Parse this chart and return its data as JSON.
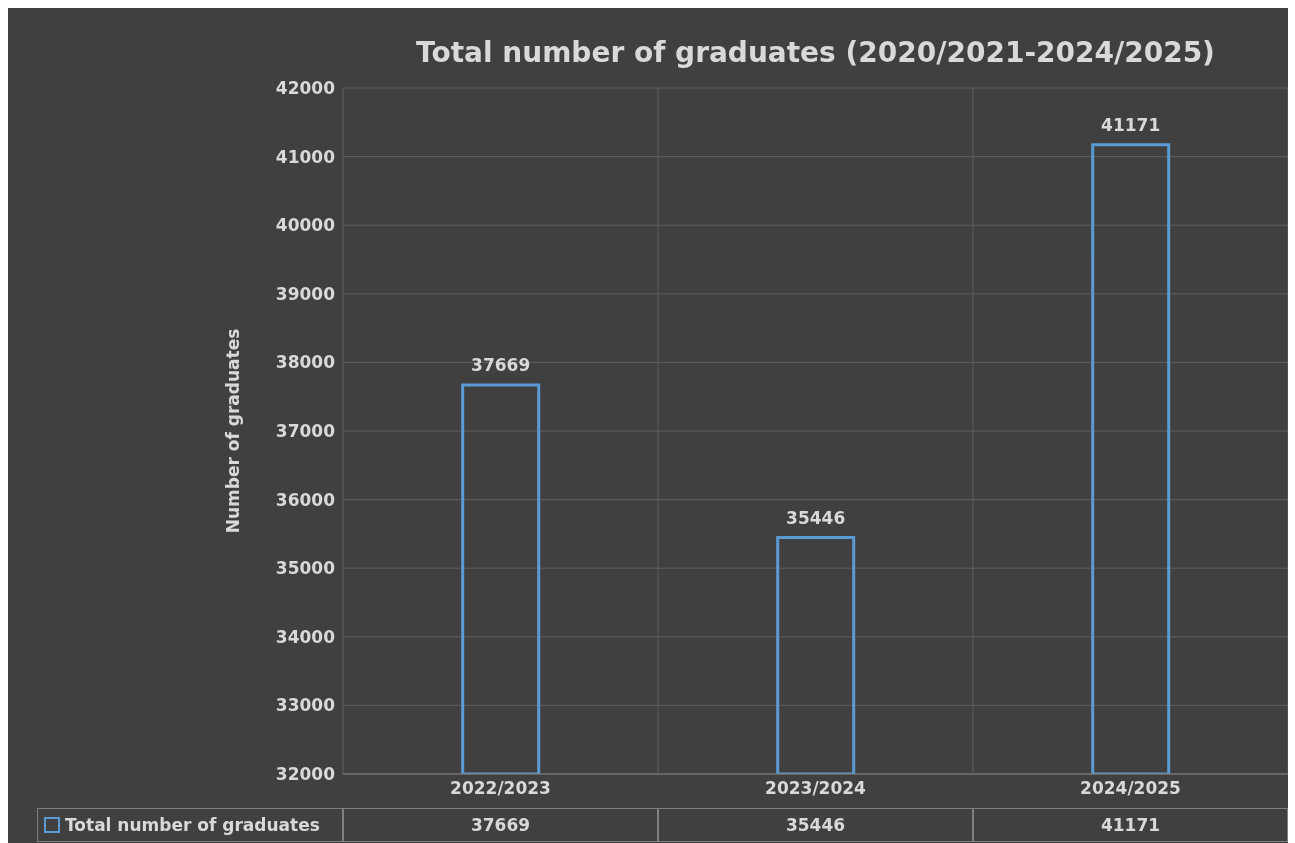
{
  "chart_data": {
    "type": "bar",
    "title": "Total number of graduates (2020/2021-2024/2025)",
    "ylabel": "Number of graduates",
    "categories": [
      "2022/2023",
      "2023/2024",
      "2024/2025"
    ],
    "series": [
      {
        "name": "Total number of graduates",
        "color": "#5b9bd5",
        "values": [
          37669,
          35446,
          41171
        ],
        "value_labels": [
          "37669",
          "35446",
          "41171"
        ]
      }
    ],
    "ylim": [
      32000,
      42000
    ],
    "yticks": [
      32000,
      33000,
      34000,
      35000,
      36000,
      37000,
      38000,
      39000,
      40000,
      41000,
      42000
    ],
    "annotations": [
      {
        "text": "37669",
        "x": "2022/2023",
        "y": 37669
      },
      {
        "text": "35446",
        "x": "2023/2024",
        "y": 35446
      },
      {
        "text": "41171",
        "x": "2024/2025",
        "y": 41171
      }
    ],
    "grid": true,
    "legend": "bottom"
  }
}
